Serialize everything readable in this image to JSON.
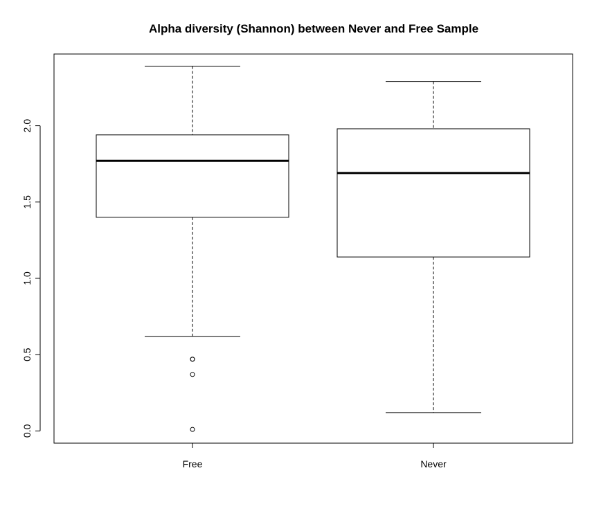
{
  "chart_data": {
    "type": "boxplot",
    "title": "Alpha diversity (Shannon) between Never and Free Sample",
    "xlabel": "",
    "ylabel": "",
    "ylim": [
      -0.08,
      2.47
    ],
    "yticks": [
      "0.0",
      "0.5",
      "1.0",
      "1.5",
      "2.0"
    ],
    "categories": [
      "Free",
      "Never"
    ],
    "boxes": [
      {
        "category": "Free",
        "lower_whisker": 0.62,
        "q1": 1.4,
        "median": 1.77,
        "q3": 1.94,
        "upper_whisker": 2.39,
        "outliers": [
          0.47,
          0.47,
          0.37,
          0.01
        ]
      },
      {
        "category": "Never",
        "lower_whisker": 0.12,
        "q1": 1.14,
        "median": 1.69,
        "q3": 1.98,
        "upper_whisker": 2.29,
        "outliers": []
      }
    ],
    "grid": false,
    "legend": "none"
  }
}
